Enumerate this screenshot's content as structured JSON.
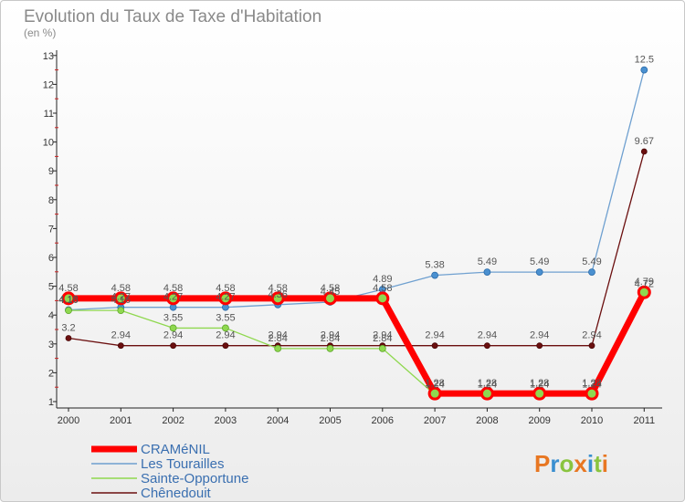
{
  "chart_data": {
    "type": "line",
    "title": "Evolution du Taux de Taxe d'Habitation",
    "subtitle": "(en %)",
    "xlabel": "",
    "ylabel": "",
    "ylim": [
      0.8,
      13.2
    ],
    "y_ticks": [
      "1",
      "2",
      "3",
      "4",
      "5",
      "6",
      "7",
      "8",
      "9",
      "10",
      "11",
      "12",
      "13"
    ],
    "categories": [
      "2000",
      "2001",
      "2002",
      "2003",
      "2004",
      "2005",
      "2006",
      "2007",
      "2008",
      "2009",
      "2010",
      "2011"
    ],
    "series": [
      {
        "name": "Chênedouit",
        "color": "#6b0f0f",
        "values": [
          3.2,
          2.94,
          2.94,
          2.94,
          2.94,
          2.94,
          2.94,
          2.94,
          2.94,
          2.94,
          2.94,
          9.67
        ],
        "labels": [
          "3.2",
          "2.94",
          "2.94",
          "2.94",
          "2.94",
          "2.94",
          "2.94",
          "2.94",
          "2.94",
          "2.94",
          "2.94",
          "9.67"
        ]
      },
      {
        "name": "Les Tourailles",
        "color": "#6fa0d0",
        "values": [
          4.18,
          4.27,
          4.27,
          4.27,
          4.36,
          4.45,
          4.89,
          5.38,
          5.49,
          5.49,
          5.49,
          12.5
        ],
        "labels": [
          "4.18",
          "4.27",
          "4.27",
          "4.27",
          "4.36",
          "4.45",
          "4.89",
          "5.38",
          "5.49",
          "5.49",
          "5.49",
          "12.5"
        ]
      },
      {
        "name": "Sainte-Opportune",
        "color": "#8fd84f",
        "values": [
          4.16,
          4.16,
          3.55,
          3.55,
          2.84,
          2.84,
          2.84,
          1.24,
          1.24,
          1.24,
          1.24,
          4.72
        ],
        "labels": [
          "4.16",
          "4.16",
          "3.55",
          "3.55",
          "2.84",
          "2.84",
          "2.84",
          "1.24",
          "1.24",
          "1.24",
          "1.24",
          "4.72"
        ]
      },
      {
        "name": "CRAMéNIL",
        "color": "#ff0000",
        "values": [
          4.58,
          4.58,
          4.58,
          4.58,
          4.58,
          4.58,
          4.58,
          1.28,
          1.28,
          1.28,
          1.28,
          4.79
        ],
        "labels": [
          "4.58",
          "4.58",
          "4.58",
          "4.58",
          "4.58",
          "4.58",
          "4.58",
          "1.28",
          "1.28",
          "1.28",
          "1.28",
          "4.79"
        ]
      }
    ],
    "legend_order": [
      "CRAMéNIL",
      "Les Tourailles",
      "Sainte-Opportune",
      "Chênedouit"
    ],
    "legend": "bottom-left"
  },
  "logo": {
    "text": "Proxiti",
    "colors": [
      "#e87722",
      "#3a8fd0",
      "#8ac43f",
      "#e87722",
      "#3a8fd0",
      "#8ac43f",
      "#e87722"
    ]
  }
}
